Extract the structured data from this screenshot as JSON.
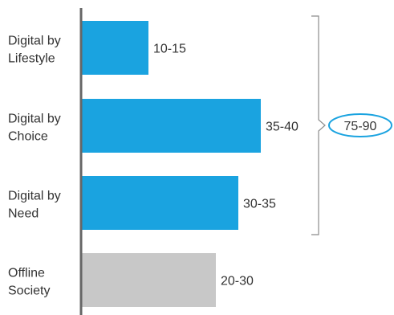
{
  "chart_data": {
    "type": "bar",
    "orientation": "horizontal",
    "categories": [
      [
        "Digital by",
        "Lifestyle"
      ],
      [
        "Digital by",
        "Choice"
      ],
      [
        "Digital by",
        "Need"
      ],
      [
        "Offline",
        "Society"
      ]
    ],
    "values": [
      15,
      40,
      35,
      30
    ],
    "value_labels": [
      "10-15",
      "35-40",
      "30-35",
      "20-30"
    ],
    "bar_colors": [
      "#1aa3e0",
      "#1aa3e0",
      "#1aa3e0",
      "#c8c8c8"
    ],
    "xlim": [
      0,
      50
    ],
    "grid": false,
    "bracket": {
      "covers_categories": [
        0,
        1,
        2
      ],
      "total_label": "75-90",
      "outline_color": "#1aa3e0"
    },
    "axis_color": "#666666"
  }
}
